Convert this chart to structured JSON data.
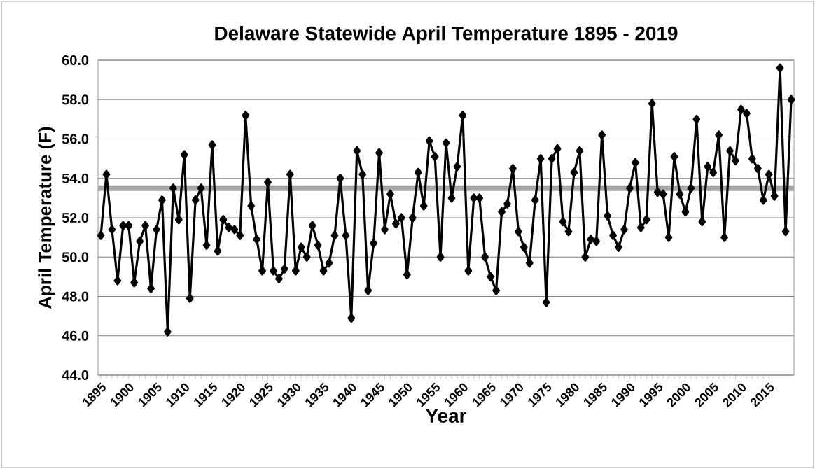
{
  "chart_data": {
    "type": "line",
    "title": "Delaware Statewide April Temperature 1895 - 2019",
    "xlabel": "Year",
    "ylabel": "April Temperature (F)",
    "x": [
      1895,
      1896,
      1897,
      1898,
      1899,
      1900,
      1901,
      1902,
      1903,
      1904,
      1905,
      1906,
      1907,
      1908,
      1909,
      1910,
      1911,
      1912,
      1913,
      1914,
      1915,
      1916,
      1917,
      1918,
      1919,
      1920,
      1921,
      1922,
      1923,
      1924,
      1925,
      1926,
      1927,
      1928,
      1929,
      1930,
      1931,
      1932,
      1933,
      1934,
      1935,
      1936,
      1937,
      1938,
      1939,
      1940,
      1941,
      1942,
      1943,
      1944,
      1945,
      1946,
      1947,
      1948,
      1949,
      1950,
      1951,
      1952,
      1953,
      1954,
      1955,
      1956,
      1957,
      1958,
      1959,
      1960,
      1961,
      1962,
      1963,
      1964,
      1965,
      1966,
      1967,
      1968,
      1969,
      1970,
      1971,
      1972,
      1973,
      1974,
      1975,
      1976,
      1977,
      1978,
      1979,
      1980,
      1981,
      1982,
      1983,
      1984,
      1985,
      1986,
      1987,
      1988,
      1989,
      1990,
      1991,
      1992,
      1993,
      1994,
      1995,
      1996,
      1997,
      1998,
      1999,
      2000,
      2001,
      2002,
      2003,
      2004,
      2005,
      2006,
      2007,
      2008,
      2009,
      2010,
      2011,
      2012,
      2013,
      2014,
      2015,
      2016,
      2017,
      2018,
      2019
    ],
    "series": [
      {
        "color": "#000000",
        "values": [
          51.1,
          54.2,
          51.4,
          48.8,
          51.6,
          51.6,
          48.7,
          50.8,
          51.6,
          48.4,
          51.4,
          52.9,
          46.2,
          53.5,
          51.9,
          55.2,
          47.9,
          52.9,
          53.5,
          50.6,
          55.7,
          50.3,
          51.9,
          51.5,
          51.4,
          51.1,
          57.2,
          52.6,
          50.9,
          49.3,
          53.8,
          49.3,
          48.9,
          49.4,
          54.2,
          49.3,
          50.5,
          50.0,
          51.6,
          50.6,
          49.3,
          49.7,
          51.1,
          54.0,
          51.1,
          46.9,
          55.4,
          54.2,
          48.3,
          50.7,
          55.3,
          51.4,
          53.2,
          51.7,
          52.0,
          49.1,
          52.0,
          54.3,
          52.6,
          55.9,
          55.1,
          50.0,
          55.8,
          53.0,
          54.6,
          57.2,
          49.3,
          53.0,
          53.0,
          50.0,
          49.0,
          48.3,
          52.3,
          52.7,
          54.5,
          51.3,
          50.5,
          49.7,
          52.9,
          55.0,
          47.7,
          55.0,
          55.5,
          51.8,
          51.3,
          54.3,
          55.4,
          50.0,
          50.9,
          50.8,
          56.2,
          52.1,
          51.1,
          50.5,
          51.4,
          53.5,
          54.8,
          51.5,
          51.9,
          57.8,
          53.3,
          53.2,
          51.0,
          55.1,
          53.2,
          52.3,
          53.5,
          57.0,
          51.8,
          54.6,
          54.3,
          56.2,
          51.0,
          55.4,
          54.9,
          57.5,
          57.3,
          55.0,
          54.5,
          52.9,
          54.2,
          53.1,
          59.6,
          51.3,
          58.0
        ]
      }
    ],
    "xlim": [
      1894.5,
      2019.5
    ],
    "xticks": [
      1895,
      1900,
      1905,
      1910,
      1915,
      1920,
      1925,
      1930,
      1935,
      1940,
      1945,
      1950,
      1955,
      1960,
      1965,
      1970,
      1975,
      1980,
      1985,
      1990,
      1995,
      2000,
      2005,
      2010,
      2015
    ],
    "ylim": [
      44,
      60
    ],
    "yticks": [
      {
        "value": 44,
        "label": "44.0"
      },
      {
        "value": 46,
        "label": "46.0"
      },
      {
        "value": 48,
        "label": "48.0"
      },
      {
        "value": 50,
        "label": "50.0"
      },
      {
        "value": 52,
        "label": "52.0"
      },
      {
        "value": 54,
        "label": "54.0"
      },
      {
        "value": 56,
        "label": "56.0"
      },
      {
        "value": 58,
        "label": "58.0"
      },
      {
        "value": 60,
        "label": "60.0"
      }
    ],
    "ref_lines": [
      {
        "axis": "y",
        "value": 53.5,
        "color": "#a6a6a6"
      }
    ],
    "grid": "y",
    "marker": "diamond",
    "line_style": "solid"
  }
}
